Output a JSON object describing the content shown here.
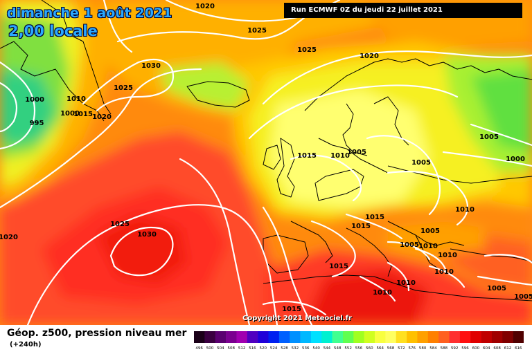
{
  "header": {
    "date": "dimanche 1 août 2021",
    "time": "2,00 locale",
    "run": "Run ECMWF 0Z du jeudi 22 juillet 2021"
  },
  "copyright": "Copyright 2021 Meteociel.fr",
  "footer": {
    "variable": "Géop. z500, pression niveau mer",
    "lead": "(+240h)"
  },
  "legend": {
    "values": [
      "496",
      "500",
      "504",
      "508",
      "512",
      "516",
      "520",
      "524",
      "528",
      "532",
      "536",
      "540",
      "544",
      "548",
      "552",
      "556",
      "560",
      "564",
      "568",
      "572",
      "576",
      "580",
      "584",
      "588",
      "592",
      "596",
      "600",
      "604",
      "608",
      "612",
      "616"
    ],
    "colors": [
      "#1a0018",
      "#3a0040",
      "#5a0070",
      "#7a0090",
      "#a000b0",
      "#5000c0",
      "#2000d8",
      "#0020f0",
      "#0060ff",
      "#0090ff",
      "#00b8ff",
      "#00e0ff",
      "#00f0d0",
      "#40ff90",
      "#60ff50",
      "#a0ff20",
      "#d0ff20",
      "#f8ff40",
      "#ffff60",
      "#ffe020",
      "#ffc000",
      "#ffa000",
      "#ff8000",
      "#ff6020",
      "#ff3030",
      "#ff1010",
      "#e00000",
      "#c00000",
      "#a00000",
      "#800000",
      "#500000"
    ]
  },
  "isobars": [
    {
      "label": "1020"
    },
    {
      "label": "1025"
    },
    {
      "label": "1025"
    },
    {
      "label": "1020"
    },
    {
      "label": "1030"
    },
    {
      "label": "1025"
    },
    {
      "label": "1000"
    },
    {
      "label": "1010"
    },
    {
      "label": "1000"
    },
    {
      "label": "1015"
    },
    {
      "label": "1020"
    },
    {
      "label": "995"
    },
    {
      "label": "1015"
    },
    {
      "label": "1010"
    },
    {
      "label": "1005"
    },
    {
      "label": "1005"
    },
    {
      "label": "1005"
    },
    {
      "label": "1000"
    },
    {
      "label": "1010"
    },
    {
      "label": "1015"
    },
    {
      "label": "1015"
    },
    {
      "label": "1005"
    },
    {
      "label": "1005"
    },
    {
      "label": "1010"
    },
    {
      "label": "1010"
    },
    {
      "label": "1010"
    },
    {
      "label": "1005"
    },
    {
      "label": "1025"
    },
    {
      "label": "1030"
    },
    {
      "label": "1020"
    },
    {
      "label": "1015"
    },
    {
      "label": "1010"
    },
    {
      "label": "1010"
    },
    {
      "label": "1005"
    },
    {
      "label": "1015"
    }
  ]
}
